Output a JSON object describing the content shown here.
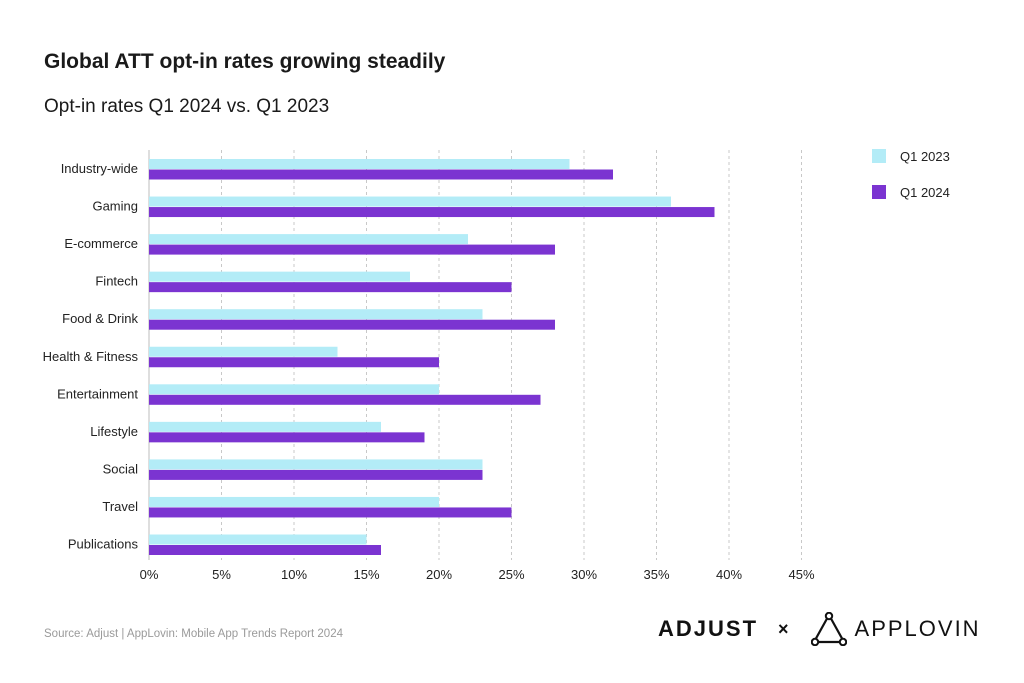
{
  "title": "Global ATT opt-in rates growing steadily",
  "subtitle": "Opt-in rates Q1 2024 vs. Q1 2023",
  "source": "Source: Adjust | AppLovin: Mobile App Trends Report 2024",
  "logos": {
    "left": "ADJUST",
    "separator": "×",
    "right": "APPLOVIN"
  },
  "colors": {
    "q1_2023": "#b3ecf7",
    "q1_2024": "#7b34d1",
    "grid": "#c8c8c8"
  },
  "chart_data": {
    "type": "bar",
    "orientation": "horizontal",
    "categories": [
      "Industry-wide",
      "Gaming",
      "E-commerce",
      "Fintech",
      "Food & Drink",
      "Health & Fitness",
      "Entertainment",
      "Lifestyle",
      "Social",
      "Travel",
      "Publications"
    ],
    "series": [
      {
        "name": "Q1 2023",
        "values": [
          29,
          36,
          22,
          18,
          23,
          13,
          20,
          16,
          23,
          20,
          15
        ]
      },
      {
        "name": "Q1 2024",
        "values": [
          32,
          39,
          28,
          25,
          28,
          20,
          27,
          19,
          23,
          25,
          16
        ]
      }
    ],
    "xlim": [
      0,
      45
    ],
    "xticks": [
      "0%",
      "5%",
      "10%",
      "15%",
      "20%",
      "25%",
      "30%",
      "35%",
      "40%",
      "45%"
    ],
    "grid": "vertical dashed",
    "legend_position": "top-right"
  }
}
